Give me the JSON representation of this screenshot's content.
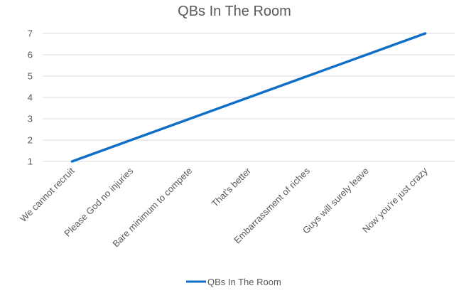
{
  "chart_data": {
    "type": "line",
    "title": "QBs In The Room",
    "categories": [
      "We cannot recruit",
      "Please God no injuries",
      "Bare minimum to compete",
      "That's better",
      "Embarrassment of riches",
      "Guys will surely leave",
      "Now you're just crazy"
    ],
    "series": [
      {
        "name": "QBs In The Room",
        "values": [
          1,
          2,
          3,
          4,
          5,
          6,
          7
        ],
        "color": "#0f6fc6"
      }
    ],
    "ylim": [
      1,
      7
    ],
    "yticks": [
      "1",
      "2",
      "3",
      "4",
      "5",
      "6",
      "7"
    ],
    "grid": true,
    "legend": "bottom"
  }
}
